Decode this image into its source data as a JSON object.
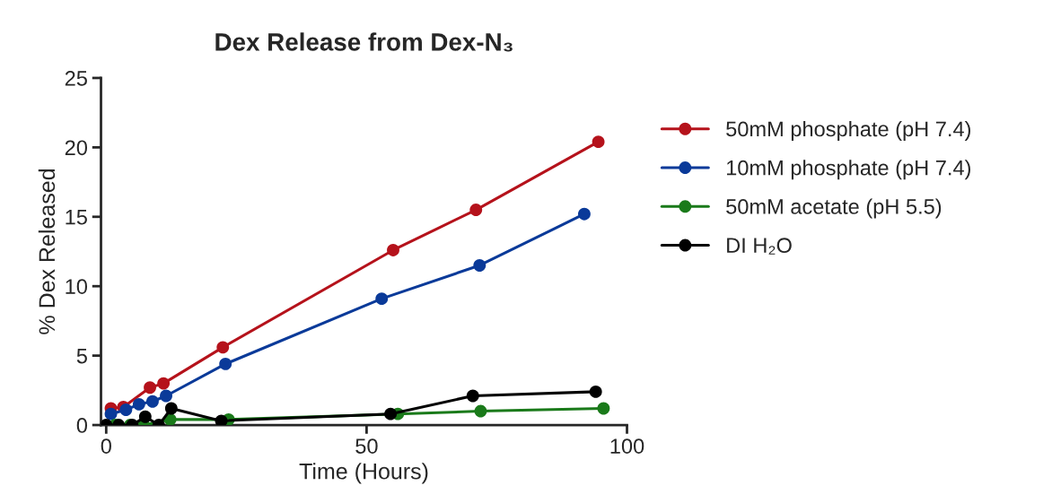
{
  "chart_data": {
    "type": "line",
    "title": "Dex Release from Dex-N₃",
    "xlabel": "Time (Hours)",
    "ylabel": "% Dex Released",
    "xlim": [
      -1,
      100
    ],
    "xticks": [
      0,
      50,
      100
    ],
    "ylim": [
      0,
      25
    ],
    "yticks": [
      0,
      5,
      10,
      15,
      20,
      25
    ],
    "grid": false,
    "legend": "right",
    "marker": "circle",
    "line_style": "solid",
    "series": [
      {
        "name": "50mM phosphate (pH 7.4)",
        "color": "#b5121b",
        "x": [
          0.9,
          3.3,
          8.4,
          11,
          22.4,
          55.1,
          71,
          94.5
        ],
        "values": [
          1.2,
          1.3,
          2.7,
          3.0,
          5.6,
          12.6,
          15.5,
          20.4
        ]
      },
      {
        "name": "10mM phosphate (pH 7.4)",
        "color": "#0a3a99",
        "x": [
          0.9,
          3.8,
          6.3,
          8.9,
          11.5,
          22.9,
          52.9,
          71.7,
          91.8
        ],
        "values": [
          0.8,
          1.1,
          1.5,
          1.7,
          2.1,
          4.4,
          9.1,
          11.5,
          15.2
        ]
      },
      {
        "name": "50mM acetate (pH 5.5)",
        "color": "#1a7a1a",
        "x": [
          1.7,
          4.6,
          7.2,
          9.8,
          12.3,
          23.5,
          56,
          71.9,
          95.5
        ],
        "values": [
          0,
          0,
          0,
          null,
          0.4,
          0.4,
          0.8,
          1.0,
          1.2
        ]
      },
      {
        "name": "DI H₂O",
        "color": "#000000",
        "x": [
          0,
          2.4,
          5,
          7.5,
          10.1,
          12.5,
          22.1,
          54.6,
          70.4,
          94
        ],
        "values": [
          0,
          0,
          0,
          0.6,
          0,
          1.2,
          0.3,
          0.8,
          2.1,
          2.4
        ]
      }
    ]
  }
}
